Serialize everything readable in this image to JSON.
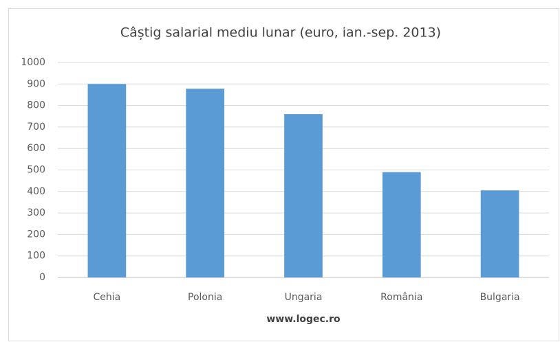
{
  "chart_data": {
    "type": "bar",
    "title": "Câștig salarial mediu lunar (euro, ian.-sep. 2013)",
    "x_label": "www.logec.ro",
    "categories": [
      "Cehia",
      "Polonia",
      "Ungaria",
      "România",
      "Bulgaria"
    ],
    "values": [
      900,
      878,
      760,
      490,
      405
    ],
    "color": "#5b9bd5",
    "ylim": [
      0,
      1000
    ],
    "yticks": [
      0,
      100,
      200,
      300,
      400,
      500,
      600,
      700,
      800,
      900,
      1000
    ],
    "grid": true
  }
}
